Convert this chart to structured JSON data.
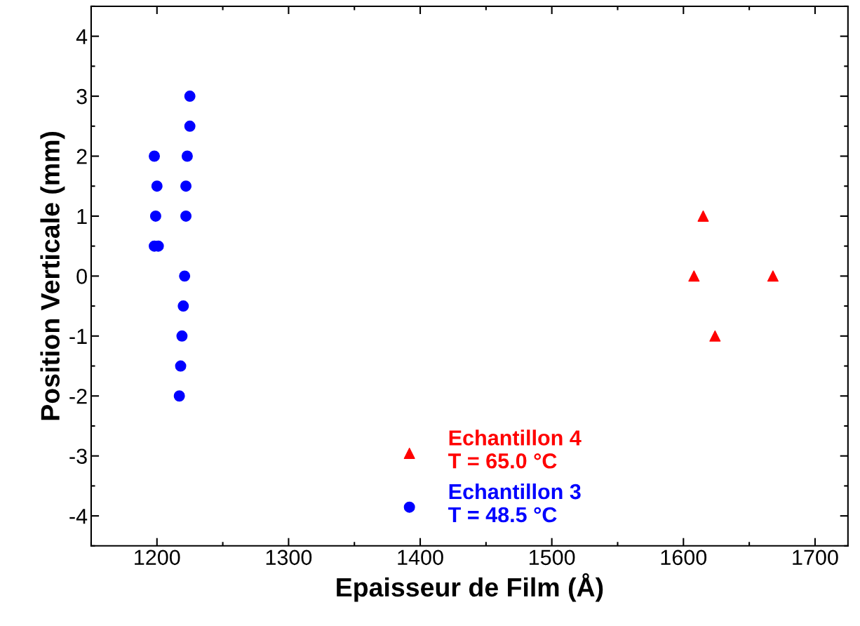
{
  "chart_data": {
    "type": "scatter",
    "xlabel": "Epaisseur de Film (Å)",
    "ylabel": "Position Verticale (mm)",
    "xlim": [
      1150,
      1725
    ],
    "xticks": [
      1200,
      1300,
      1400,
      1500,
      1600,
      1700
    ],
    "ylim": [
      -4.5,
      4.5
    ],
    "yticks": [
      -4,
      -3,
      -2,
      -1,
      0,
      1,
      2,
      3,
      4
    ],
    "grid": false,
    "legend": "bottom",
    "series": [
      {
        "name": "Echantillon 4\nT = 65.0 °C",
        "color": "#ff0000",
        "marker": "triangle",
        "x": [
          1615,
          1608,
          1668,
          1624
        ],
        "values": [
          1,
          0,
          0,
          -1
        ]
      },
      {
        "name": "Echantillon 3\nT = 48.5 °C",
        "color": "#0000ff",
        "marker": "circle",
        "x": [
          1198,
          1200,
          1199,
          1198,
          1201,
          1225,
          1225,
          1223,
          1222,
          1222,
          1221,
          1220,
          1219,
          1218,
          1217
        ],
        "values": [
          2,
          1.5,
          1,
          0.5,
          0.5,
          3,
          2.5,
          2,
          1.5,
          1,
          0,
          -0.5,
          -1,
          -1.5,
          -2
        ]
      }
    ]
  }
}
